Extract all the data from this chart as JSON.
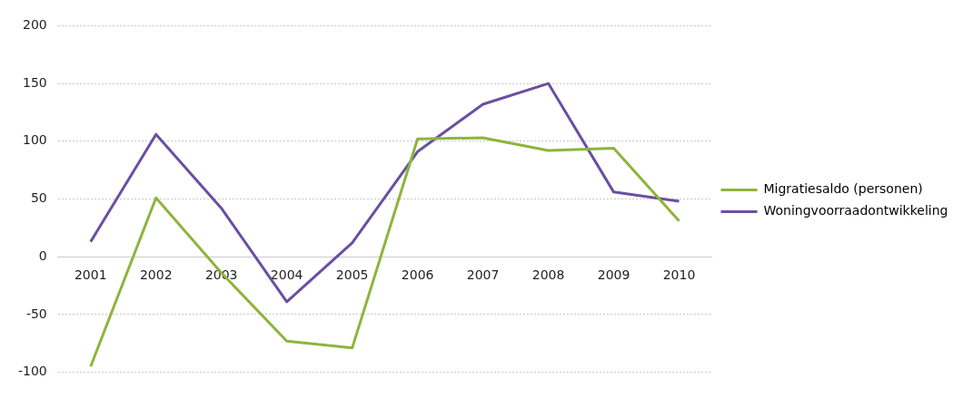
{
  "chart_data": {
    "type": "line",
    "categories": [
      "2001",
      "2002",
      "2003",
      "2004",
      "2005",
      "2006",
      "2007",
      "2008",
      "2009",
      "2010"
    ],
    "series": [
      {
        "name": "Migratiesaldo (personen)",
        "color": "#8db53c",
        "values": [
          -95,
          51,
          -14,
          -73,
          -79,
          102,
          103,
          92,
          94,
          31
        ]
      },
      {
        "name": "Woningvoorraadontwikkeling",
        "color": "#6a4fa0",
        "values": [
          13,
          106,
          42,
          -39,
          12,
          91,
          132,
          150,
          56,
          48
        ]
      }
    ],
    "ylim": [
      -100,
      200
    ],
    "yticks": [
      -100,
      -50,
      0,
      50,
      100,
      150,
      200
    ],
    "grid": "y",
    "legend": "right",
    "marker": "none",
    "line_style": "solid"
  }
}
